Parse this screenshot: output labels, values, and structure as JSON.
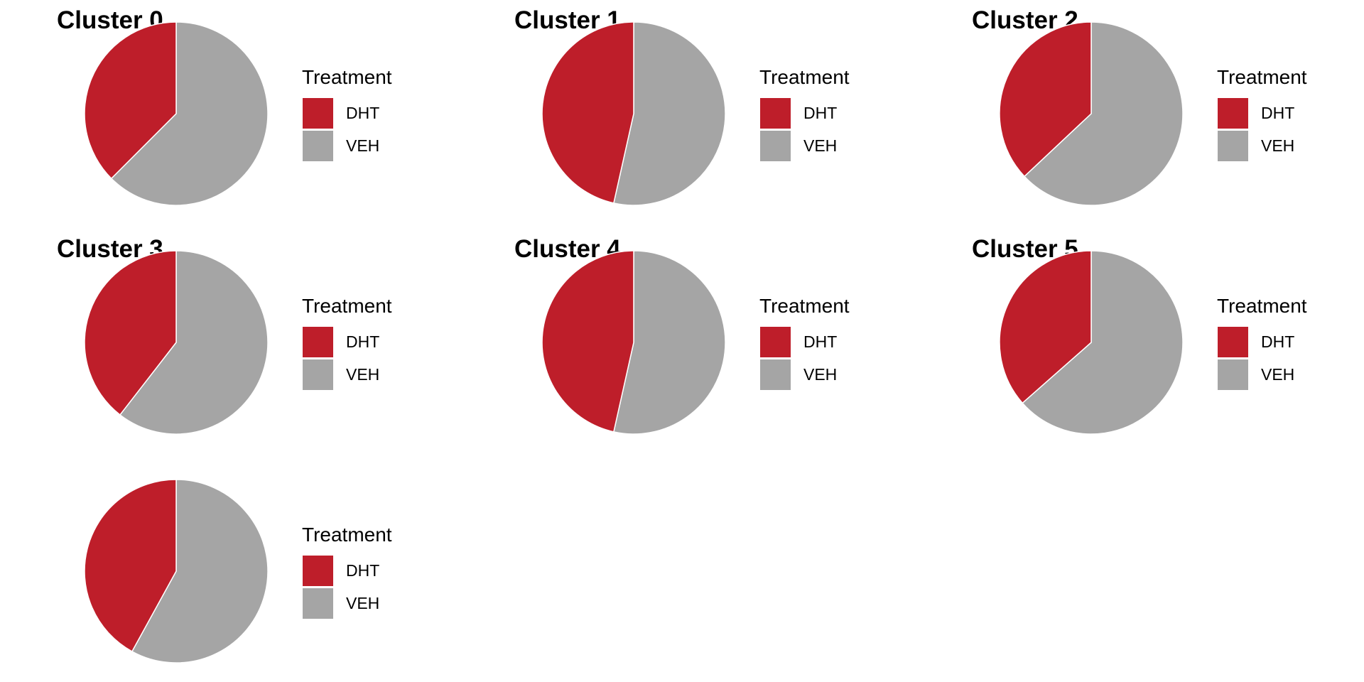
{
  "legend_title": "Treatment",
  "colors": {
    "DHT": "#be1e2a",
    "VEH": "#a5a5a5"
  },
  "chart_data": [
    {
      "type": "pie",
      "title": "Cluster 0",
      "legend_title": "Treatment",
      "categories": [
        "DHT",
        "VEH"
      ],
      "values": [
        37.5,
        62.5
      ]
    },
    {
      "type": "pie",
      "title": "Cluster 1",
      "legend_title": "Treatment",
      "categories": [
        "DHT",
        "VEH"
      ],
      "values": [
        46.5,
        53.5
      ]
    },
    {
      "type": "pie",
      "title": "Cluster 2",
      "legend_title": "Treatment",
      "categories": [
        "DHT",
        "VEH"
      ],
      "values": [
        37.0,
        63.0
      ]
    },
    {
      "type": "pie",
      "title": "Cluster 3",
      "legend_title": "Treatment",
      "categories": [
        "DHT",
        "VEH"
      ],
      "values": [
        39.5,
        60.5
      ]
    },
    {
      "type": "pie",
      "title": "Cluster 4",
      "legend_title": "Treatment",
      "categories": [
        "DHT",
        "VEH"
      ],
      "values": [
        46.5,
        53.5
      ]
    },
    {
      "type": "pie",
      "title": "Cluster 5",
      "legend_title": "Treatment",
      "categories": [
        "DHT",
        "VEH"
      ],
      "values": [
        36.5,
        63.5
      ]
    },
    {
      "type": "pie",
      "title": "",
      "legend_title": "Treatment",
      "categories": [
        "DHT",
        "VEH"
      ],
      "values": [
        42.0,
        58.0
      ]
    }
  ]
}
